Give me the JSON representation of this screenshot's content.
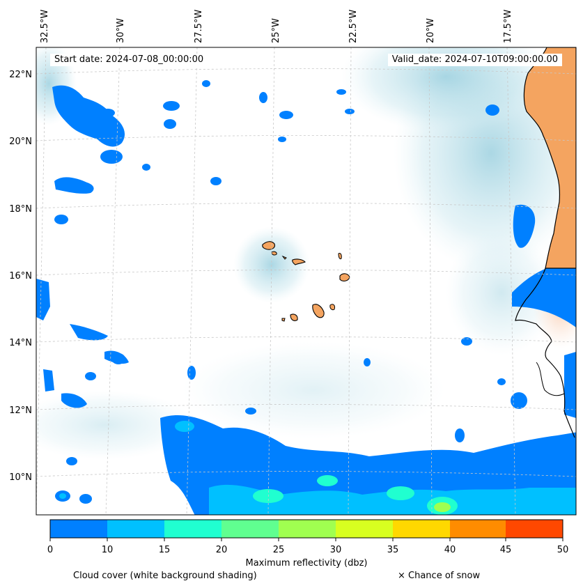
{
  "map": {
    "start_date_label": "Start date: 2024-07-08_00:00:00",
    "valid_date_label": "Valid_date: 2024-07-10T09:00:00.00",
    "lon_labels": [
      "32.5°W",
      "30°W",
      "27.5°W",
      "25°W",
      "22.5°W",
      "20°W",
      "17.5°W"
    ],
    "lat_labels": [
      "22°N",
      "20°N",
      "18°N",
      "16°N",
      "14°N",
      "12°N",
      "10°N"
    ],
    "land_color": "#f4a460",
    "coast_color": "#000000",
    "cloud_color": "#a9d7e3"
  },
  "colorbar": {
    "title": "Maximum reflectivity (dbz)",
    "ticks": [
      "0",
      "10",
      "15",
      "20",
      "25",
      "30",
      "35",
      "40",
      "45",
      "50"
    ],
    "colors": [
      "#0080ff",
      "#00c0ff",
      "#20ffd0",
      "#60ff90",
      "#a0ff50",
      "#d8ff20",
      "#ffd800",
      "#ff8c00",
      "#ff4800"
    ]
  },
  "legend": {
    "cloud_cover": "Cloud cover (white background shading)",
    "snow": "× Chance of snow"
  }
}
